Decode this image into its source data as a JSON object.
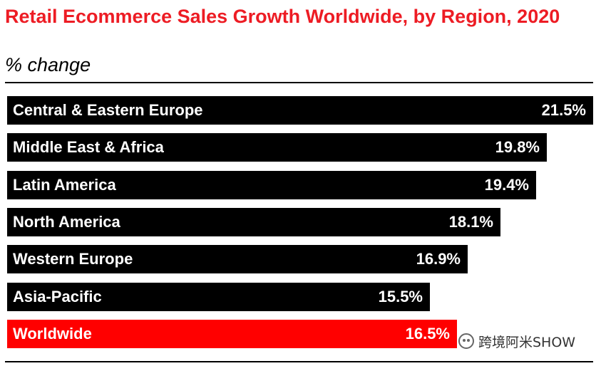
{
  "chart_data": {
    "type": "bar",
    "orientation": "horizontal",
    "title": "Retail Ecommerce Sales Growth Worldwide, by Region, 2020",
    "subtitle": "% change",
    "xlabel": "",
    "ylabel": "",
    "xlim": [
      0,
      21.5
    ],
    "categories": [
      "Central & Eastern Europe",
      "Middle East & Africa",
      "Latin America",
      "North America",
      "Western Europe",
      "Asia-Pacific",
      "Worldwide"
    ],
    "values": [
      21.5,
      19.8,
      19.4,
      18.1,
      16.9,
      15.5,
      16.5
    ],
    "value_labels": [
      "21.5%",
      "19.8%",
      "19.4%",
      "18.1%",
      "16.9%",
      "15.5%",
      "16.5%"
    ],
    "highlight_category": "Worldwide",
    "colors": {
      "default": "#000000",
      "highlight": "#ff0000",
      "title": "#ed1c24",
      "text_on_bar": "#ffffff"
    }
  },
  "watermark": {
    "text": "跨境阿米SHOW",
    "icon": "wechat-icon"
  }
}
